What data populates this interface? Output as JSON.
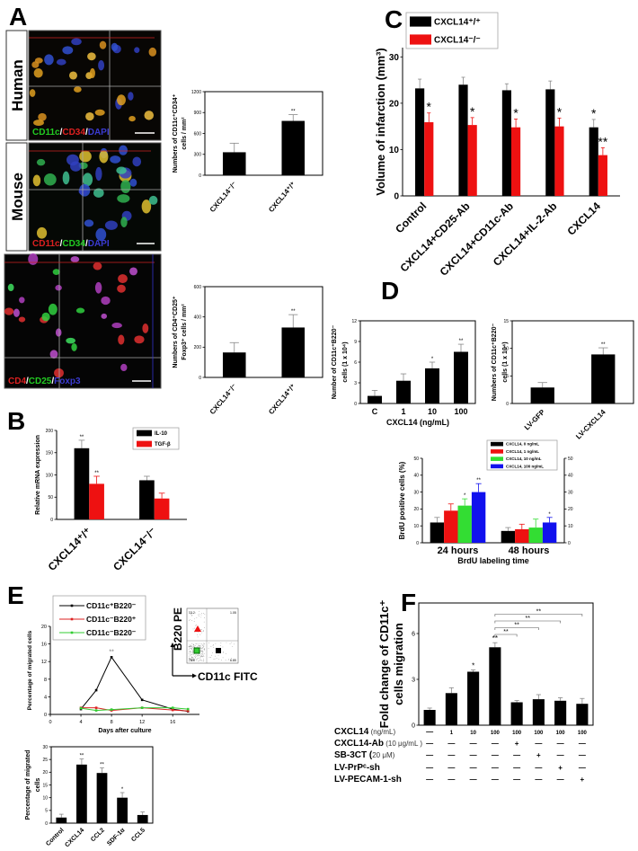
{
  "panels": {
    "A": "A",
    "B": "B",
    "C": "C",
    "D": "D",
    "E": "E",
    "F": "F"
  },
  "microscopy": {
    "human_label": "Human",
    "mouse_label": "Mouse",
    "human_stain": [
      {
        "text": "CD11c",
        "color": "#22cc22"
      },
      {
        "text": "/",
        "color": "#ffffff"
      },
      {
        "text": "CD34",
        "color": "#dd2020"
      },
      {
        "text": "/",
        "color": "#ffffff"
      },
      {
        "text": "DAPI",
        "color": "#3a3ad0"
      }
    ],
    "mouse_stain": [
      {
        "text": "CD11c",
        "color": "#dd2020"
      },
      {
        "text": "/",
        "color": "#ffffff"
      },
      {
        "text": "CD34",
        "color": "#22cc22"
      },
      {
        "text": "/",
        "color": "#ffffff"
      },
      {
        "text": "DAPI",
        "color": "#3a3ad0"
      }
    ],
    "treg_stain": [
      {
        "text": "CD4",
        "color": "#dd2020"
      },
      {
        "text": "/",
        "color": "#ffffff"
      },
      {
        "text": "CD25",
        "color": "#22cc22"
      },
      {
        "text": "/",
        "color": "#ffffff"
      },
      {
        "text": "Foxp3",
        "color": "#3a3ad0"
      }
    ]
  },
  "flow": {
    "y_axis": "B220 PE",
    "x_axis": "CD11c FITC",
    "quadrants": [
      "13.2",
      "1.05",
      "78.9",
      "6.85"
    ]
  },
  "chart_data": [
    {
      "id": "a-cd11c-cd34",
      "type": "bar",
      "categories": [
        "CXCL14⁻/⁻",
        "CXCL14⁺/⁺"
      ],
      "series": [
        {
          "values": [
            330,
            780
          ],
          "errors": [
            130,
            90
          ],
          "sig": [
            "",
            "**"
          ],
          "color": "#000000"
        }
      ],
      "ylabel": [
        "Numbers of CD11c⁺CD34⁺",
        "cells / mm²"
      ],
      "ylim": [
        0,
        1200
      ],
      "yticks": [
        "0",
        "300",
        "600",
        "900",
        "1200"
      ]
    },
    {
      "id": "a-treg",
      "type": "bar",
      "categories": [
        "CXCL14⁻/⁻",
        "CXCL14⁺/⁺"
      ],
      "series": [
        {
          "values": [
            165,
            330
          ],
          "errors": [
            65,
            85
          ],
          "sig": [
            "",
            "**"
          ],
          "color": "#000000"
        }
      ],
      "ylabel": [
        "Numbers of CD4⁺CD25⁺",
        "Foxp3⁺ cells / mm²"
      ],
      "ylim": [
        0,
        600
      ],
      "yticks": [
        "0",
        "200",
        "400",
        "600"
      ]
    },
    {
      "id": "b-mrna",
      "type": "bar",
      "categories": [
        "CXCL14⁺/⁺",
        "CXCL14⁻/⁻"
      ],
      "series": [
        {
          "name": "IL-10",
          "values": [
            160,
            88
          ],
          "errors": [
            18,
            9
          ],
          "sig": [
            "**",
            ""
          ],
          "color": "#000000"
        },
        {
          "name": "TGF-β",
          "values": [
            80,
            47
          ],
          "errors": [
            17,
            12
          ],
          "sig": [
            "**",
            ""
          ],
          "color": "#ee1111"
        }
      ],
      "ylabel": [
        "Relative mRNA expression"
      ],
      "ylim": [
        0,
        200
      ],
      "yticks": [
        "0",
        "50",
        "100",
        "150",
        "200"
      ],
      "legend": "top-right"
    },
    {
      "id": "c-infarction",
      "type": "bar",
      "categories": [
        "Control",
        "CXCL14+CD25-Ab",
        "CXCL14+CD11c-Ab",
        "CXCL14+IL-2-Ab",
        "CXCL14"
      ],
      "series": [
        {
          "name": "CXCL14⁺/⁺",
          "values": [
            23.2,
            24.0,
            22.8,
            23.0,
            14.8
          ],
          "errors": [
            2.0,
            1.6,
            1.4,
            1.8,
            1.7
          ],
          "sig": [
            "",
            "",
            "",
            "",
            "*"
          ],
          "color": "#000000"
        },
        {
          "name": "CXCL14⁻/⁻",
          "values": [
            15.9,
            15.3,
            14.8,
            15.0,
            8.8
          ],
          "errors": [
            2.0,
            1.6,
            1.8,
            1.8,
            1.6
          ],
          "sig": [
            "*",
            "*",
            "*",
            "*",
            "**"
          ],
          "color": "#ee1111"
        }
      ],
      "ylabel": [
        "Volume of infarction (mm³)"
      ],
      "ylim": [
        0,
        32
      ],
      "yticks": [
        "0",
        "10",
        "20",
        "30"
      ],
      "legend": "top-left"
    },
    {
      "id": "d-dose",
      "type": "bar",
      "categories": [
        "C",
        "1",
        "10",
        "100"
      ],
      "series": [
        {
          "values": [
            1.1,
            3.3,
            5.1,
            7.5
          ],
          "errors": [
            0.8,
            1.0,
            0.9,
            1.1
          ],
          "sig": [
            "",
            "",
            "*",
            "**"
          ],
          "color": "#000000"
        }
      ],
      "xlabel": "CXCL14 (ng/mL)",
      "ylabel": [
        "Number of CD11c⁺B220⁻",
        "cells (1 x 10⁴)"
      ],
      "ylim": [
        0,
        12
      ],
      "yticks": [
        "0",
        "3",
        "6",
        "9",
        "12"
      ]
    },
    {
      "id": "d-lentivirus",
      "type": "bar",
      "categories": [
        "LV-GFP",
        "LV-CXCL14"
      ],
      "series": [
        {
          "values": [
            2.9,
            8.9
          ],
          "errors": [
            0.9,
            1.2
          ],
          "sig": [
            "",
            "**"
          ],
          "color": "#000000"
        }
      ],
      "ylabel": [
        "Numbers of CD11c⁺B220⁻",
        "cells (1 x 10⁴)"
      ],
      "ylim": [
        0,
        15
      ],
      "yticks": [
        "0",
        "5",
        "10",
        "15"
      ]
    },
    {
      "id": "d-brdu",
      "type": "bar",
      "categories": [
        "24 hours",
        "48 hours"
      ],
      "series": [
        {
          "name": "CXCL14, 0 ng/mL",
          "values": [
            12,
            7
          ],
          "errors": [
            3,
            2
          ],
          "sig": [
            "",
            ""
          ],
          "color": "#000000"
        },
        {
          "name": "CXCL14, 1 ng/mL",
          "values": [
            19,
            8
          ],
          "errors": [
            4,
            3
          ],
          "sig": [
            "",
            ""
          ],
          "color": "#ee1111"
        },
        {
          "name": "CXCL14, 10 ng/mL",
          "values": [
            22,
            9
          ],
          "errors": [
            4,
            5
          ],
          "sig": [
            "*",
            ""
          ],
          "color": "#33dd33"
        },
        {
          "name": "CXCL14, 100 ng/mL",
          "values": [
            30,
            12
          ],
          "errors": [
            5,
            3
          ],
          "sig": [
            "**",
            "*"
          ],
          "color": "#1111ee"
        }
      ],
      "xlabel": "BrdU labeling time",
      "ylabel": [
        "BrdU positive cells (%)"
      ],
      "ylim": [
        0,
        50
      ],
      "yticks": [
        "0",
        "10",
        "20",
        "30",
        "40",
        "50"
      ],
      "legend": "top-right"
    },
    {
      "id": "e-timecourse",
      "type": "line",
      "x": [
        4,
        6,
        8,
        12,
        16,
        18
      ],
      "series": [
        {
          "name": "CD11c⁺B220⁻",
          "values": [
            1.2,
            5.5,
            13.0,
            3.3,
            1.2,
            0.7
          ],
          "color": "#000000"
        },
        {
          "name": "CD11c⁻B220⁺",
          "values": [
            1.5,
            1.5,
            0.9,
            1.5,
            1.0,
            0.8
          ],
          "color": "#dd2222"
        },
        {
          "name": "CD11c⁻B220⁻",
          "values": [
            1.4,
            0.9,
            1.1,
            1.5,
            1.5,
            1.2
          ],
          "color": "#33cc33"
        }
      ],
      "annotation": {
        "text": "**",
        "x": 8
      },
      "xlabel": "Days after culture",
      "ylabel": [
        "Percentage of migrated cells"
      ],
      "xlim": [
        0,
        19.5
      ],
      "xticks": [
        "0",
        "4",
        "8",
        "12",
        "16"
      ],
      "ylim": [
        0,
        20
      ],
      "yticks": [
        "0",
        "4",
        "8",
        "12",
        "16",
        "20"
      ],
      "legend": "top-left"
    },
    {
      "id": "e-chemokines",
      "type": "bar",
      "categories": [
        "Control",
        "CXCL14",
        "CCL2",
        "SDF-1α",
        "CCL5"
      ],
      "series": [
        {
          "values": [
            2.2,
            23.0,
            19.7,
            10.0,
            3.2
          ],
          "errors": [
            1.3,
            2.2,
            2.0,
            2.0,
            1.2
          ],
          "sig": [
            "",
            "**",
            "**",
            "*",
            ""
          ],
          "color": "#000000"
        }
      ],
      "ylabel": [
        "Percentage of migrated",
        "cells"
      ],
      "ylim": [
        0,
        30
      ],
      "yticks": [
        "0",
        "5",
        "10",
        "15",
        "20",
        "25",
        "30"
      ]
    },
    {
      "id": "f-migration",
      "type": "bar",
      "categories": [
        "",
        "",
        "",
        "",
        "",
        "",
        "",
        ""
      ],
      "series": [
        {
          "values": [
            1.0,
            2.1,
            3.5,
            5.1,
            1.5,
            1.7,
            1.6,
            1.4
          ],
          "errors": [
            0.12,
            0.35,
            0.12,
            0.3,
            0.12,
            0.3,
            0.2,
            0.35
          ],
          "sig": [
            "",
            "",
            "*",
            "**",
            "",
            "",
            "",
            ""
          ],
          "color": "#000000"
        }
      ],
      "brackets": [
        {
          "from": 3,
          "to": 4,
          "text": "**"
        },
        {
          "from": 3,
          "to": 5,
          "text": "**"
        },
        {
          "from": 3,
          "to": 6,
          "text": "**"
        },
        {
          "from": 3,
          "to": 7,
          "text": "**"
        }
      ],
      "ylabel": [
        "Fold change of CD11c⁺",
        "cells  migration"
      ],
      "ylim": [
        0,
        8
      ],
      "yticks": [
        "0",
        "3",
        "6"
      ],
      "conditions": [
        {
          "label": "CXCL14",
          "unit": " (ng/mL)",
          "values": [
            "—",
            "1",
            "10",
            "100",
            "100",
            "100",
            "100",
            "100"
          ]
        },
        {
          "label": "CXCL14-Ab",
          "unit": " (10 μg/mL )",
          "values": [
            "—",
            "—",
            "—",
            "—",
            "+",
            "—",
            "—",
            "—"
          ]
        },
        {
          "label": "SB-3CT (",
          "unit": "20 μM)",
          "values": [
            "—",
            "—",
            "—",
            "—",
            "—",
            "+",
            "—",
            "—"
          ]
        },
        {
          "label": "LV-PrPᶜ-sh",
          "unit": "",
          "values": [
            "—",
            "—",
            "—",
            "—",
            "—",
            "—",
            "+",
            "—"
          ]
        },
        {
          "label": "LV-PECAM-1-sh",
          "unit": "",
          "values": [
            "—",
            "—",
            "—",
            "—",
            "—",
            "—",
            "—",
            "+"
          ]
        }
      ]
    }
  ]
}
